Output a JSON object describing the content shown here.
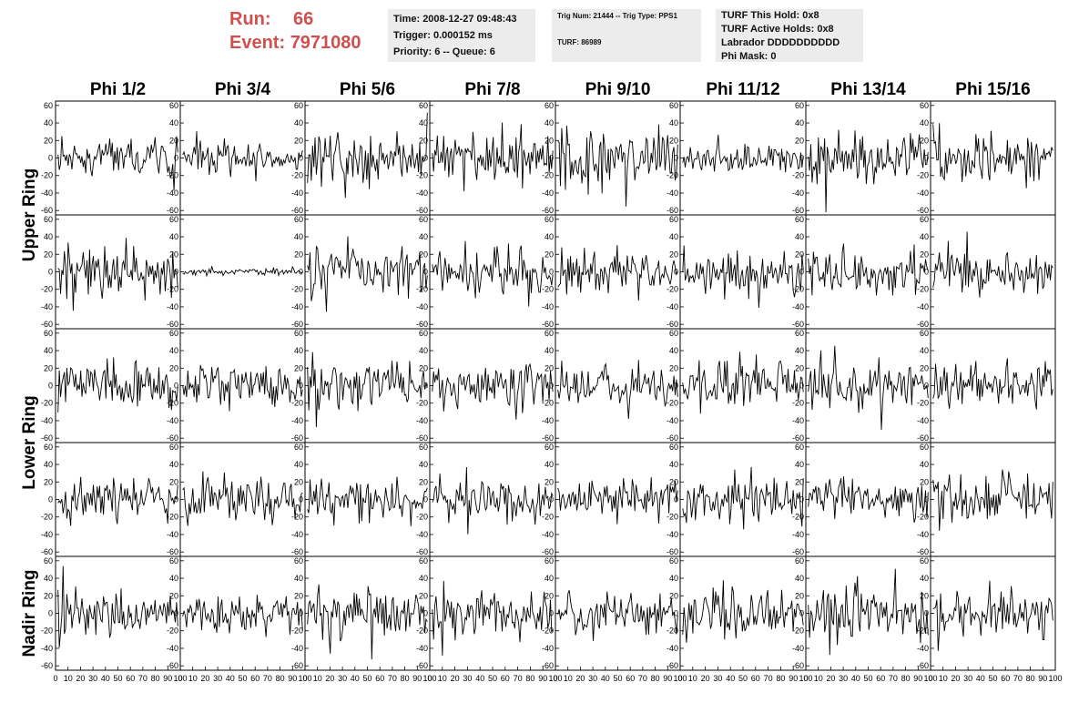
{
  "header": {
    "run_label": "Run:",
    "run_value": "66",
    "event_label": "Event:",
    "event_value": "7971080",
    "accent_color": "#d05050",
    "time_line": "Time: 2008-12-27 09:48:43",
    "trigger_line": "Trigger: 0.000152 ms",
    "priority_line": "Priority: 6 -- Queue: 6",
    "trig_line": "Trig Num: 21444 -- Trig Type: PPS1",
    "turf_line": "TURF: 86989",
    "turf_hold_line": "TURF This Hold: 0x8",
    "turf_active_line": "TURF Active Holds: 0x8",
    "labrador_line": "Labrador DDDDDDDDDD",
    "phi_mask_line": "Phi Mask: 0"
  },
  "chart_data": {
    "type": "line",
    "columns": [
      "Phi 1/2",
      "Phi 3/4",
      "Phi 5/6",
      "Phi 7/8",
      "Phi 9/10",
      "Phi 11/12",
      "Phi 13/14",
      "Phi 15/16"
    ],
    "row_groups": [
      {
        "label": "Upper Ring",
        "rows": 2
      },
      {
        "label": "Lower Ring",
        "rows": 2
      },
      {
        "label": "Nadir Ring",
        "rows": 1
      }
    ],
    "xlim": [
      0,
      100
    ],
    "ylim": [
      -65,
      65
    ],
    "xticks": [
      0,
      10,
      20,
      30,
      40,
      50,
      60,
      70,
      80,
      90,
      100
    ],
    "yticks": [
      -60,
      -40,
      -20,
      0,
      20,
      40,
      60
    ],
    "samples_per_trace": 96,
    "amplitudes": [
      [
        12,
        9,
        13,
        15,
        18,
        10,
        16,
        15
      ],
      [
        15,
        2,
        16,
        14,
        14,
        14,
        14,
        13
      ],
      [
        13,
        12,
        14,
        14,
        12,
        15,
        14,
        13
      ],
      [
        13,
        14,
        12,
        13,
        11,
        14,
        12,
        15
      ],
      [
        15,
        11,
        14,
        14,
        12,
        14,
        15,
        14
      ]
    ],
    "x_axis_tick_label_string": "0 10 20 30 40 50 60 70 80 90 100"
  }
}
